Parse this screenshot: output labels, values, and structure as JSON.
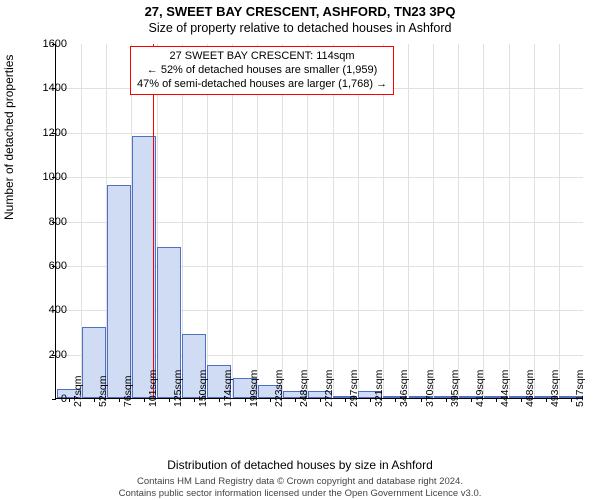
{
  "header": {
    "address": "27, SWEET BAY CRESCENT, ASHFORD, TN23 3PQ",
    "subtitle": "Size of property relative to detached houses in Ashford"
  },
  "annotation": {
    "line1": "27 SWEET BAY CRESCENT: 114sqm",
    "line2": "← 52% of detached houses are smaller (1,959)",
    "line3": "47% of semi-detached houses are larger (1,768) →"
  },
  "chart": {
    "type": "histogram",
    "x_categories": [
      "27sqm",
      "52sqm",
      "76sqm",
      "101sqm",
      "125sqm",
      "150sqm",
      "174sqm",
      "199sqm",
      "223sqm",
      "248sqm",
      "272sqm",
      "297sqm",
      "321sqm",
      "346sqm",
      "370sqm",
      "395sqm",
      "419sqm",
      "444sqm",
      "468sqm",
      "493sqm",
      "517sqm"
    ],
    "values": [
      40,
      320,
      960,
      1180,
      680,
      290,
      150,
      90,
      60,
      30,
      30,
      10,
      30,
      10,
      10,
      10,
      10,
      5,
      5,
      5,
      5
    ],
    "y_max": 1600,
    "y_ticks": [
      0,
      200,
      400,
      600,
      800,
      1000,
      1200,
      1400,
      1600
    ],
    "bar_fill": "#cfdcf4",
    "bar_border": "#5070c4",
    "grid_color": "#e0e0e0",
    "reference_line_color": "#ff0000",
    "reference_after_index": 3,
    "background_color": "#ffffff",
    "y_axis_label": "Number of detached properties",
    "x_axis_label": "Distribution of detached houses by size in Ashford",
    "bar_width_ratio": 0.96,
    "title_fontsize": 13,
    "axis_label_fontsize": 12,
    "tick_fontsize": 11
  },
  "footer": {
    "line1": "Contains HM Land Registry data © Crown copyright and database right 2024.",
    "line2": "Contains public sector information licensed under the Open Government Licence v3.0."
  }
}
